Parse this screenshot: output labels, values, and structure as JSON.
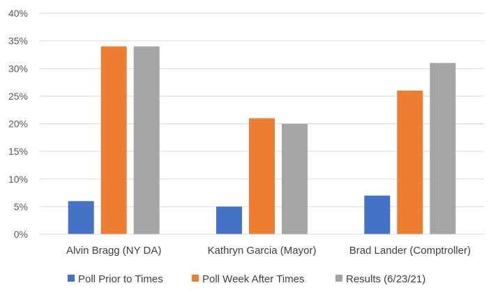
{
  "chart_data": {
    "type": "bar",
    "categories": [
      "Alvin Bragg (NY DA)",
      "Kathryn Garcia (Mayor)",
      "Brad Lander (Comptroller)"
    ],
    "series": [
      {
        "name": "Poll Prior to Times",
        "values": [
          6,
          5,
          7
        ],
        "color": "#4472C4"
      },
      {
        "name": "Poll Week After Times",
        "values": [
          34,
          21,
          26
        ],
        "color": "#ED7D31"
      },
      {
        "name": "Results (6/23/21)",
        "values": [
          34,
          20,
          31
        ],
        "color": "#A5A5A5"
      }
    ],
    "ylim": [
      0,
      40
    ],
    "yticks": [
      "0%",
      "5%",
      "10%",
      "15%",
      "20%",
      "25%",
      "30%",
      "35%",
      "40%"
    ],
    "ytick_values": [
      0,
      5,
      10,
      15,
      20,
      25,
      30,
      35,
      40
    ],
    "grid": true,
    "legend_position": "bottom",
    "gridline_color": "#D9D9D9"
  }
}
